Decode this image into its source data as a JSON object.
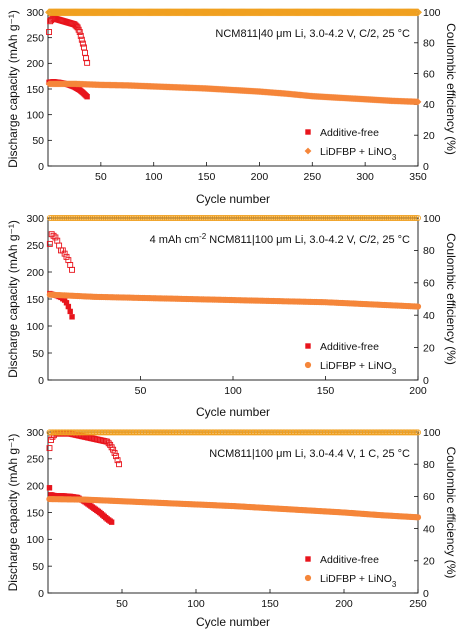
{
  "colors": {
    "additive_free": "#e8141c",
    "lidfbp": "#f5863a",
    "lidfbp_ce": "#f0a020"
  },
  "chart_data": [
    {
      "type": "scatter",
      "annotation": "NCM811|40 μm Li, 3.0-4.2 V, C/2, 25 °C",
      "xlabel": "Cycle number",
      "ylabel": "Discharge capacity (mAh g⁻¹)",
      "y2label": "Coulombic efficiency (%)",
      "xlim": [
        0,
        350
      ],
      "ylim": [
        0,
        300
      ],
      "y2lim": [
        0,
        100
      ],
      "xticks": [
        50,
        100,
        150,
        200,
        250,
        300,
        350
      ],
      "yticks": [
        0,
        50,
        100,
        150,
        200,
        250,
        300
      ],
      "y2ticks": [
        0,
        20,
        40,
        60,
        80,
        100
      ],
      "legend_position": "bottom-right",
      "series": [
        {
          "name": "Additive-free",
          "kind": "capacity",
          "marker": "square-filled",
          "color_key": "additive_free",
          "x": [
            1,
            5,
            10,
            15,
            20,
            25,
            30,
            33,
            35,
            37
          ],
          "y": [
            163,
            164,
            163,
            161,
            158,
            154,
            148,
            143,
            139,
            135
          ]
        },
        {
          "name": "Additive-free",
          "kind": "ce",
          "marker": "square-open",
          "color_key": "additive_free",
          "x": [
            1,
            2,
            5,
            10,
            15,
            20,
            25,
            28,
            30,
            32,
            34,
            36,
            37
          ],
          "y": [
            87,
            94,
            96,
            95,
            94,
            93,
            92,
            90,
            87,
            82,
            77,
            70,
            67
          ]
        },
        {
          "name": "LiDFBP + LiNO₃",
          "kind": "capacity",
          "marker": "diamond-filled",
          "color_key": "lidfbp",
          "x": [
            1,
            25,
            50,
            75,
            100,
            125,
            150,
            175,
            200,
            225,
            250,
            275,
            300,
            325,
            350
          ],
          "y": [
            160,
            160,
            158,
            157,
            155,
            153,
            151,
            148,
            145,
            141,
            136,
            133,
            130,
            127,
            125
          ]
        },
        {
          "name": "LiDFBP + LiNO₃",
          "kind": "ce",
          "marker": "diamond-open",
          "color_key": "lidfbp_ce",
          "x": [
            1,
            350
          ],
          "y": [
            99.8,
            99.8
          ]
        }
      ]
    },
    {
      "type": "scatter",
      "annotation_prefix": "4 mAh cm",
      "annotation_sup": "-2",
      "annotation_suffix": " NCM811|100 μm Li, 3.0-4.2 V, C/2, 25 °C",
      "xlabel": "Cycle number",
      "ylabel": "Discharge capacity (mAh g⁻¹)",
      "y2label": "Coulombic efficiency (%)",
      "xlim": [
        0,
        200
      ],
      "ylim": [
        0,
        300
      ],
      "y2lim": [
        0,
        100
      ],
      "xticks": [
        50,
        100,
        150,
        200
      ],
      "yticks": [
        0,
        50,
        100,
        150,
        200,
        250,
        300
      ],
      "y2ticks": [
        0,
        20,
        40,
        60,
        80,
        100
      ],
      "legend_position": "bottom-right",
      "series": [
        {
          "name": "Additive-free",
          "kind": "capacity",
          "marker": "square-filled",
          "color_key": "additive_free",
          "x": [
            1,
            3,
            5,
            7,
            9,
            10,
            11,
            12,
            13
          ],
          "y": [
            160,
            158,
            156,
            153,
            148,
            143,
            136,
            127,
            117
          ]
        },
        {
          "name": "Additive-free",
          "kind": "ce",
          "marker": "square-open",
          "color_key": "additive_free",
          "x": [
            1,
            2,
            3,
            4,
            5,
            6,
            7,
            8,
            9,
            10,
            11,
            12,
            13
          ],
          "y": [
            84,
            90,
            89,
            88,
            86,
            83,
            80,
            80,
            78,
            76,
            74,
            71,
            68
          ]
        },
        {
          "name": "LiDFBP + LiNO₃",
          "kind": "capacity",
          "marker": "circle-filled",
          "color_key": "lidfbp",
          "x": [
            1,
            25,
            50,
            75,
            100,
            125,
            150,
            175,
            200
          ],
          "y": [
            158,
            154,
            152,
            150,
            148,
            146,
            144,
            140,
            136
          ]
        },
        {
          "name": "LiDFBP + LiNO₃",
          "kind": "ce",
          "marker": "circle-open",
          "color_key": "lidfbp_ce",
          "x": [
            1,
            200
          ],
          "y": [
            100,
            100
          ]
        }
      ]
    },
    {
      "type": "scatter",
      "annotation": "NCM811|100 μm Li, 3.0-4.4 V, 1 C, 25 °C",
      "xlabel": "Cycle number",
      "ylabel": "Discharge capacity (mAh g⁻¹)",
      "y2label": "Coulombic efficiency (%)",
      "xlim": [
        0,
        250
      ],
      "ylim": [
        0,
        300
      ],
      "y2lim": [
        0,
        100
      ],
      "xticks": [
        50,
        100,
        150,
        200,
        250
      ],
      "yticks": [
        0,
        50,
        100,
        150,
        200,
        250,
        300
      ],
      "y2ticks": [
        0,
        20,
        40,
        60,
        80,
        100
      ],
      "legend_position": "bottom-right",
      "series": [
        {
          "name": "Additive-free",
          "kind": "capacity",
          "marker": "square-filled",
          "color_key": "additive_free",
          "x": [
            1,
            2,
            5,
            10,
            15,
            20,
            25,
            30,
            35,
            40,
            43
          ],
          "y": [
            196,
            183,
            181,
            181,
            180,
            178,
            170,
            160,
            150,
            138,
            132
          ]
        },
        {
          "name": "Additive-free",
          "kind": "ce",
          "marker": "square-open",
          "color_key": "additive_free",
          "x": [
            1,
            2,
            3,
            5,
            10,
            15,
            20,
            25,
            30,
            35,
            40,
            42,
            44,
            46,
            48
          ],
          "y": [
            90,
            95,
            97,
            99,
            99,
            99,
            98,
            97,
            96,
            95,
            94,
            92,
            89,
            85,
            80
          ]
        },
        {
          "name": "LiDFBP + LiNO₃",
          "kind": "capacity",
          "marker": "circle-filled",
          "color_key": "lidfbp",
          "x": [
            1,
            25,
            50,
            75,
            100,
            125,
            150,
            175,
            200,
            225,
            250
          ],
          "y": [
            175,
            174,
            171,
            168,
            165,
            162,
            158,
            154,
            150,
            145,
            141
          ]
        },
        {
          "name": "LiDFBP + LiNO₃",
          "kind": "ce",
          "marker": "circle-open",
          "color_key": "lidfbp_ce",
          "x": [
            1,
            250
          ],
          "y": [
            99.8,
            99.8
          ]
        }
      ]
    }
  ],
  "legend": {
    "additive_free_label": "Additive-free",
    "lidfbp_label_prefix": "LiDFBP + LiNO",
    "lidfbp_label_sub": "3"
  }
}
